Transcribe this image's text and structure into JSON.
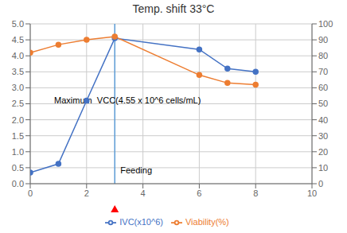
{
  "chart_data": {
    "type": "line",
    "title": "Temp. shift 33°C",
    "x": [
      0,
      1,
      2,
      3,
      6,
      7,
      8
    ],
    "xlim": [
      0,
      10
    ],
    "xticks": [
      0,
      2,
      4,
      6,
      8,
      10
    ],
    "ylim": [
      0,
      5
    ],
    "yticks": [
      {
        "value": 0,
        "label": "0.0"
      },
      {
        "value": 0.5,
        "label": "0.5"
      },
      {
        "value": 1,
        "label": "1.0"
      },
      {
        "value": 1.5,
        "label": "1.5"
      },
      {
        "value": 2,
        "label": "2.0"
      },
      {
        "value": 2.5,
        "label": "2.5"
      },
      {
        "value": 3,
        "label": "3.0"
      },
      {
        "value": 3.5,
        "label": "3.5"
      },
      {
        "value": 4,
        "label": "4.0"
      },
      {
        "value": 4.5,
        "label": "4.5"
      },
      {
        "value": 5,
        "label": "5.0"
      }
    ],
    "y2lim": [
      0,
      100
    ],
    "y2ticks": [
      0,
      10,
      20,
      30,
      40,
      50,
      60,
      70,
      80,
      90,
      100
    ],
    "grid": true,
    "legend": "bottom",
    "marker": "circle",
    "series": [
      {
        "name": "IVC(x10^6)",
        "color": "#4472c4",
        "values": [
          0.35,
          0.62,
          2.6,
          4.55,
          4.2,
          3.6,
          3.5
        ]
      },
      {
        "name": "Viability(%)",
        "color": "#ed7d31",
        "axis": "y2",
        "values": [
          82,
          87,
          90,
          92,
          68,
          63,
          62
        ]
      }
    ],
    "annotations": [
      {
        "text": "Feeding",
        "x": 3.2,
        "y": 0.42
      },
      {
        "text": "Maximum  VCC(4.55 x 10^6 cells/mL)",
        "x": 0.85,
        "y": 2.6
      }
    ],
    "vlines": [
      {
        "x": 3,
        "color": "#5b9bd5"
      }
    ],
    "point_markers": [
      {
        "x": 3,
        "marker": "triangle",
        "color": "red"
      }
    ]
  }
}
